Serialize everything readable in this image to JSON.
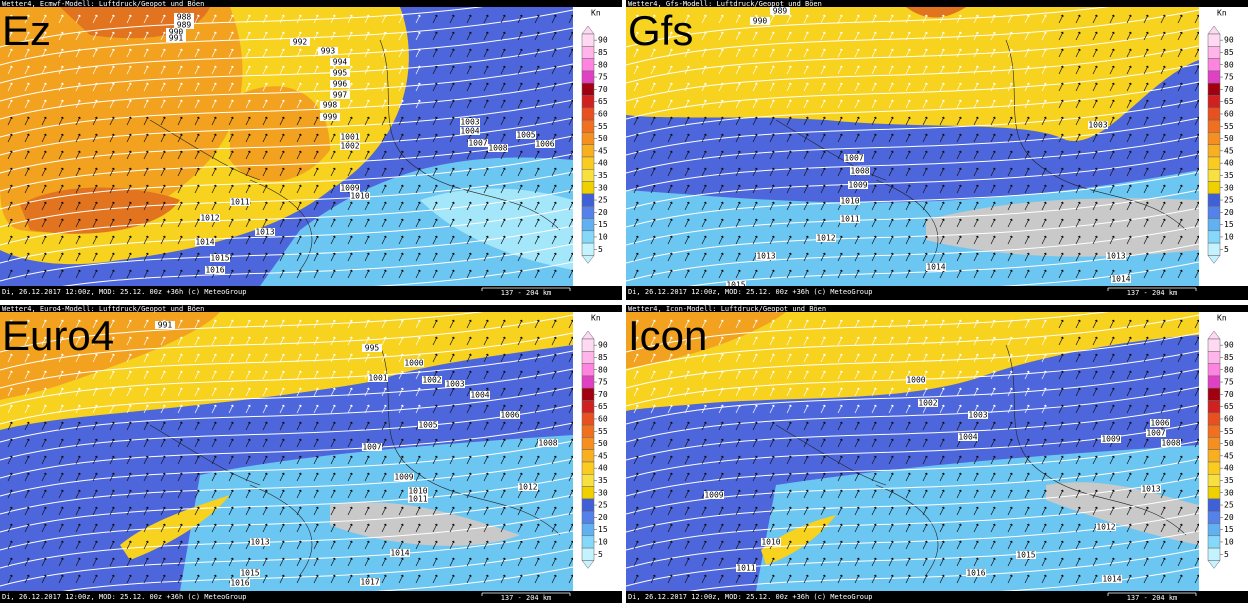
{
  "colorbar": {
    "unit": "Kn",
    "ticks": [
      90,
      85,
      80,
      75,
      70,
      65,
      60,
      55,
      50,
      45,
      40,
      35,
      30,
      25,
      20,
      15,
      10,
      5
    ]
  },
  "panels": [
    {
      "label": "Ez",
      "header": "Wetter4, Ecmwf-Modell: Luftdruck/Geopot und Böen",
      "footer": "Di, 26.12.2017 12:00z, MOD: 25.12. 00z +36h (c) MeteoGroup",
      "scale": "137 - 204 km",
      "isobars": [
        "988",
        "989",
        "990",
        "991",
        "992",
        "993",
        "994",
        "995",
        "996",
        "997",
        "998",
        "999",
        "1001",
        "1002",
        "1003",
        "1004",
        "1005",
        "1006",
        "1007",
        "1008",
        "1009",
        "1010",
        "1011",
        "1012",
        "1013",
        "1014",
        "1015",
        "1016"
      ]
    },
    {
      "label": "Gfs",
      "header": "Wetter4, Gfs-Modell: Luftdruck/Geopot und Böen",
      "footer": "Di, 26.12.2017 12:00z, MOD: 25.12. 00z +36h (c) MeteoGroup",
      "scale": "137 - 204 km",
      "isobars": [
        "989",
        "990",
        "1003",
        "1007",
        "1008",
        "1009",
        "1010",
        "1011",
        "1012",
        "1013",
        "1014",
        "1015",
        "1013",
        "1014"
      ]
    },
    {
      "label": "Euro4",
      "header": "Wetter4, Euro4-Modell: Luftdruck/Geopot und Böen",
      "footer": "Di, 26.12.2017 12:00z, MOD: 25.12. 00z +36h (c) MeteoGroup",
      "scale": "137 - 204 km",
      "isobars": [
        "991",
        "995",
        "1000",
        "1001",
        "1002",
        "1003",
        "1004",
        "1006",
        "1008",
        "1005",
        "1007",
        "1009",
        "1010",
        "1011",
        "1012",
        "1013",
        "1014",
        "1015",
        "1016",
        "1017"
      ]
    },
    {
      "label": "Icon",
      "header": "Wetter4, Icon-Modell: Luftdruck/Geopot und Böen",
      "footer": "Di, 26.12.2017 12:00z, MOD: 25.12. 00z +36h (c) MeteoGroup",
      "scale": "137 - 204 km",
      "isobars": [
        "1000",
        "1002",
        "1003",
        "1004",
        "1006",
        "1007",
        "1008",
        "1009",
        "1012",
        "1013",
        "1015",
        "1016",
        "1010",
        "1009",
        "1011",
        "1014"
      ]
    }
  ]
}
